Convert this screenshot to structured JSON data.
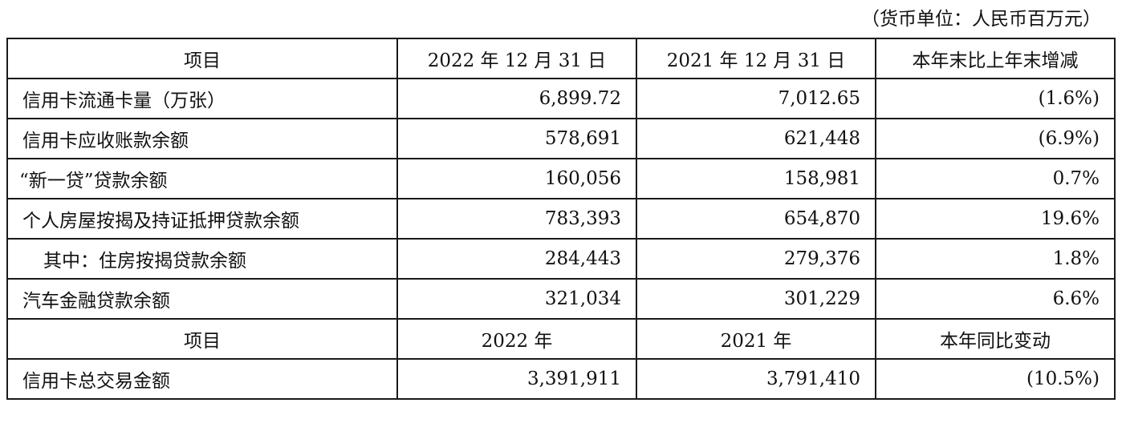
{
  "unit_note": "（货币单位：人民币百万元）",
  "header1": {
    "item": "项目",
    "col2022": "2022 年 12 月 31 日",
    "col2021": "2021 年 12 月 31 日",
    "change": "本年末比上年末增减"
  },
  "rows1": [
    {
      "label": "信用卡流通卡量（万张）",
      "v2022": "6,899.72",
      "v2021": "7,012.65",
      "change": "(1.6%)"
    },
    {
      "label": "信用卡应收账款余额",
      "v2022": "578,691",
      "v2021": "621,448",
      "change": "(6.9%)"
    },
    {
      "label": "“新一贷”贷款余额",
      "v2022": "160,056",
      "v2021": "158,981",
      "change": "0.7%"
    },
    {
      "label": "个人房屋按揭及持证抵押贷款余额",
      "v2022": "783,393",
      "v2021": "654,870",
      "change": "19.6%"
    },
    {
      "label": "其中：住房按揭贷款余额",
      "v2022": "284,443",
      "v2021": "279,376",
      "change": "1.8%"
    },
    {
      "label": "汽车金融贷款余额",
      "v2022": "321,034",
      "v2021": "301,229",
      "change": "6.6%"
    }
  ],
  "header2": {
    "item": "项目",
    "col2022": "2022 年",
    "col2021": "2021 年",
    "change": "本年同比变动"
  },
  "rows2": [
    {
      "label": "信用卡总交易金额",
      "v2022": "3,391,911",
      "v2021": "3,791,410",
      "change": "(10.5%)"
    }
  ]
}
